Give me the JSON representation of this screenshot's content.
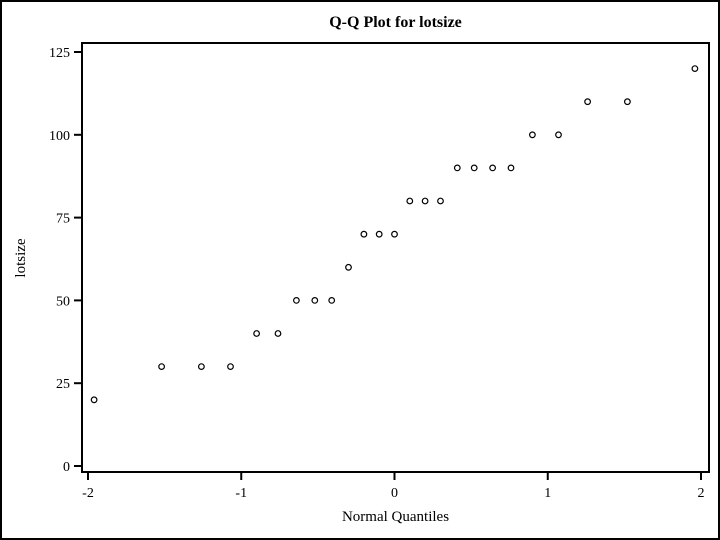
{
  "window": {
    "background": "#ffffff",
    "border_color": "#000000"
  },
  "chart_data": {
    "type": "scatter",
    "title": "Q-Q Plot for lotsize",
    "xlabel": "Normal Quantiles",
    "ylabel": "lotsize",
    "x": [
      -1.96,
      -1.52,
      -1.26,
      -1.07,
      -0.9,
      -0.76,
      -0.64,
      -0.52,
      -0.41,
      -0.3,
      -0.2,
      -0.1,
      0.0,
      0.1,
      0.2,
      0.3,
      0.41,
      0.52,
      0.64,
      0.76,
      0.9,
      1.07,
      1.26,
      1.52,
      1.96
    ],
    "y": [
      20,
      30,
      30,
      30,
      40,
      40,
      50,
      50,
      50,
      60,
      70,
      70,
      70,
      80,
      80,
      80,
      90,
      90,
      90,
      90,
      100,
      100,
      110,
      110,
      120
    ],
    "xticks": [
      -2,
      -1,
      0,
      1,
      2
    ],
    "yticks": [
      0,
      25,
      50,
      75,
      100,
      125
    ],
    "xlim": [
      -2.05,
      2.05
    ],
    "ylim": [
      0,
      127
    ],
    "grid": false,
    "legend": null,
    "marker": "open-circle",
    "colors": {
      "marker_stroke": "#000000",
      "marker_fill": "#ffffff",
      "axis": "#000000",
      "text": "#000000",
      "background": "#ffffff"
    }
  }
}
